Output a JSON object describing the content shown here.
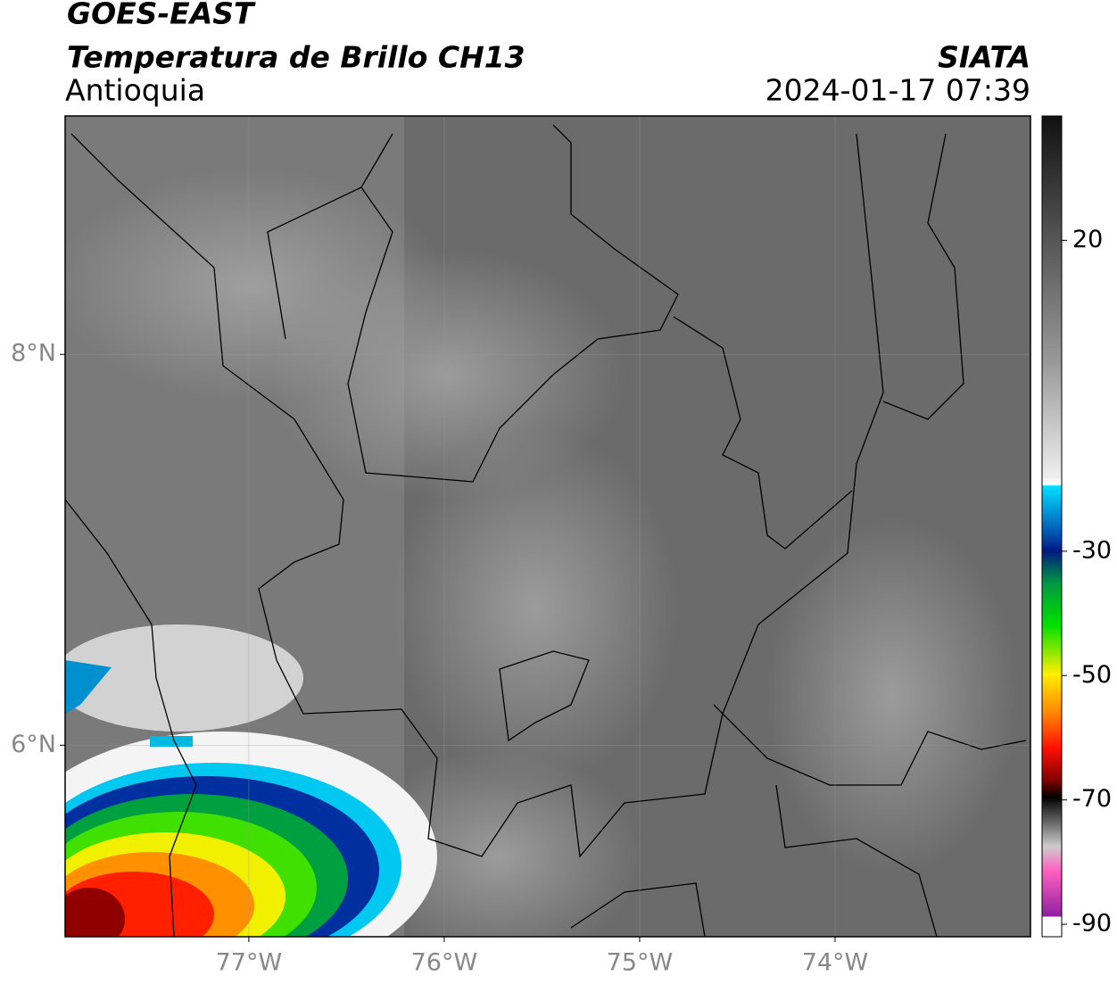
{
  "header": {
    "title": "GOES-EAST",
    "subtitle": "Temperatura de Brillo CH13",
    "region": "Antioquia",
    "source": "SIATA",
    "datetime": "2024-01-17 07:39"
  },
  "map": {
    "xlim": [
      -77.94,
      -73.0
    ],
    "ylim": [
      5.02,
      9.22
    ],
    "xticks": [
      {
        "value": -77,
        "label": "77°W"
      },
      {
        "value": -76,
        "label": "76°W"
      },
      {
        "value": -75,
        "label": "75°W"
      },
      {
        "value": -74,
        "label": "74°W"
      }
    ],
    "yticks": [
      {
        "value": 8,
        "label": "8°N"
      },
      {
        "value": 6,
        "label": "6°N"
      }
    ],
    "grid": true
  },
  "colorbar": {
    "clim": [
      -92,
      40
    ],
    "ticks": [
      20,
      -30,
      -50,
      -70,
      -90
    ]
  }
}
